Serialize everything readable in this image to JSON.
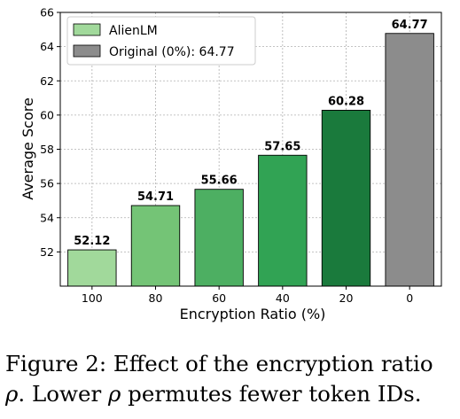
{
  "chart_data": {
    "type": "bar",
    "categories": [
      "100",
      "80",
      "60",
      "40",
      "20",
      "0"
    ],
    "values": [
      52.12,
      54.71,
      55.66,
      57.65,
      60.28,
      64.77
    ],
    "value_labels": [
      "52.12",
      "54.71",
      "55.66",
      "57.65",
      "60.28",
      "64.77"
    ],
    "bar_colors": [
      "#a1d99b",
      "#74c476",
      "#4daf62",
      "#31a354",
      "#1a7a3c",
      "#8c8c8c"
    ],
    "xlabel": "Encryption Ratio (%)",
    "ylabel": "Average Score",
    "ylim": [
      50,
      66
    ],
    "yticks": [
      "52",
      "54",
      "56",
      "58",
      "60",
      "62",
      "64",
      "66"
    ],
    "grid": true,
    "legend_placement": "top-left",
    "legend": [
      {
        "label": "AlienLM",
        "color": "#a1d99b"
      },
      {
        "label": "Original (0%): 64.77",
        "color": "#8c8c8c"
      }
    ]
  },
  "caption": {
    "line1": "Figure 2: Effect of the encryption ratio",
    "line2_rho": "ρ",
    "line2_a": ". Lower ",
    "line2_rho2": "ρ",
    "line2_b": " permutes fewer token IDs."
  }
}
